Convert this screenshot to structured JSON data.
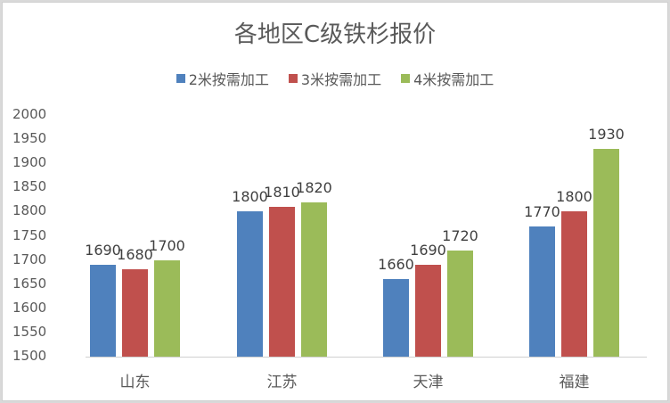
{
  "chart_data": {
    "type": "bar",
    "title": "各地区C级铁杉报价",
    "xlabel": "",
    "ylabel": "",
    "categories": [
      "山东",
      "江苏",
      "天津",
      "福建"
    ],
    "series": [
      {
        "name": "2米按需加工",
        "color": "#4f81bd",
        "values": [
          1690,
          1800,
          1660,
          1770
        ]
      },
      {
        "name": "3米按需加工",
        "color": "#c0504d",
        "values": [
          1680,
          1810,
          1690,
          1800
        ]
      },
      {
        "name": "4米按需加工",
        "color": "#9bbb59",
        "values": [
          1700,
          1820,
          1720,
          1930
        ]
      }
    ],
    "ylim": [
      1500,
      2000
    ],
    "yticks": [
      "2000",
      "1950",
      "1900",
      "1850",
      "1800",
      "1750",
      "1700",
      "1650",
      "1600",
      "1550",
      "1500"
    ],
    "grid": false,
    "legend_position": "top",
    "data_labels": true
  }
}
